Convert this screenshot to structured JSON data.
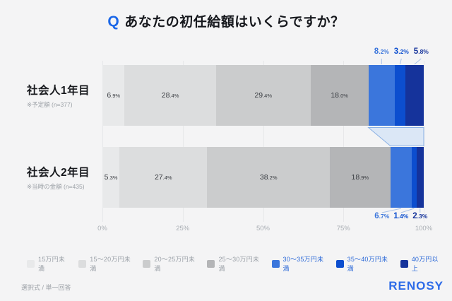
{
  "title": {
    "q_mark": "Q",
    "text": "あなたの初任給額はいくらですか？"
  },
  "chart_data": {
    "type": "bar",
    "stacked": true,
    "orientation": "horizontal",
    "unit": "%",
    "categories": [
      "社会人1年目",
      "社会人2年目"
    ],
    "category_notes": [
      "※予定額 (n=377)",
      "※当時の金額 (n=435)"
    ],
    "segments": [
      "15万円未満",
      "15〜20万円未満",
      "20〜25万円未満",
      "25〜30万円未満",
      "30〜35万円未満",
      "35〜40万円未満",
      "40万円以上"
    ],
    "segment_colors": [
      "#e8e9ea",
      "#dcddde",
      "#cbcccd",
      "#b4b5b7",
      "#3b76dc",
      "#0c4ecf",
      "#15339b"
    ],
    "series": [
      {
        "name": "社会人1年目",
        "note": "※予定額 (n=377)",
        "values": [
          6.9,
          28.4,
          29.4,
          18.0,
          8.2,
          3.2,
          5.8
        ]
      },
      {
        "name": "社会人2年目",
        "note": "※当時の金額 (n=435)",
        "values": [
          5.3,
          27.4,
          38.2,
          18.9,
          6.7,
          1.4,
          2.3
        ]
      }
    ],
    "x_ticks": [
      "0%",
      "25%",
      "50%",
      "75%",
      "100%"
    ],
    "x_tick_values": [
      0,
      25,
      50,
      75,
      100
    ],
    "xlim": [
      0,
      100
    ],
    "legend_position": "bottom",
    "grid": true
  },
  "colors": {
    "background": "#f4f4f5",
    "q_blue": "#1b67e8",
    "title_text": "#16181d",
    "gridline": "#e7e8ea",
    "inside_label": "#3a3d42",
    "axis_label": "#a8adb3",
    "row_label": "#17191d",
    "row_note": "#9ba0a6",
    "legend_text_gray": "#9aa0a7",
    "legend_text_blue": "#2a68d8",
    "connector_fill": "#dbe7f6",
    "connector_stroke": "#8ab0e4",
    "leader_line": "#a9c2e8",
    "footer_text": "#9ba0a6",
    "logo_blue": "#2d6be8"
  },
  "footer": {
    "left": "選択式 / 単一回答",
    "logo": "RENOSY"
  }
}
